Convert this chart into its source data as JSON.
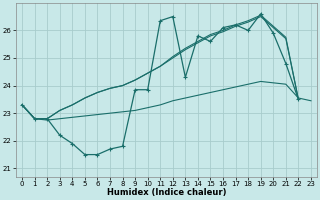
{
  "title": "",
  "xlabel": "Humidex (Indice chaleur)",
  "bg_color": "#c8e8e8",
  "grid_color": "#a8cccc",
  "line_color": "#1a6e6a",
  "xlim": [
    -0.5,
    23.5
  ],
  "ylim": [
    20.7,
    27.0
  ],
  "yticks": [
    21,
    22,
    23,
    24,
    25,
    26
  ],
  "xticks": [
    0,
    1,
    2,
    3,
    4,
    5,
    6,
    7,
    8,
    9,
    10,
    11,
    12,
    13,
    14,
    15,
    16,
    17,
    18,
    19,
    20,
    21,
    22,
    23
  ],
  "series": [
    {
      "x": [
        0,
        1,
        2,
        3,
        4,
        5,
        6,
        7,
        8,
        9,
        10,
        11,
        12,
        13,
        14,
        15,
        16,
        17,
        18,
        19,
        20,
        21,
        22
      ],
      "y": [
        23.3,
        22.8,
        22.8,
        22.2,
        21.9,
        21.5,
        21.5,
        21.7,
        21.8,
        23.85,
        23.85,
        26.35,
        26.5,
        24.3,
        25.8,
        25.6,
        26.1,
        26.2,
        26.0,
        26.6,
        25.9,
        24.8,
        23.5
      ],
      "marker": true,
      "lw": 0.9
    },
    {
      "x": [
        0,
        1,
        2,
        3,
        4,
        5,
        6,
        7,
        8,
        9,
        10,
        11,
        12,
        13,
        14,
        15,
        16,
        17,
        18,
        19,
        20,
        21,
        22
      ],
      "y": [
        23.3,
        22.8,
        22.8,
        23.1,
        23.3,
        23.55,
        23.75,
        23.9,
        24.0,
        24.2,
        24.45,
        24.7,
        25.0,
        25.3,
        25.55,
        25.8,
        25.95,
        26.15,
        26.3,
        26.5,
        26.1,
        25.7,
        23.5
      ],
      "marker": false,
      "lw": 0.8
    },
    {
      "x": [
        0,
        1,
        2,
        3,
        4,
        5,
        6,
        7,
        8,
        9,
        10,
        11,
        12,
        13,
        14,
        15,
        16,
        17,
        18,
        19,
        20,
        21,
        22
      ],
      "y": [
        23.3,
        22.8,
        22.8,
        23.1,
        23.3,
        23.55,
        23.75,
        23.9,
        24.0,
        24.2,
        24.45,
        24.7,
        25.05,
        25.35,
        25.6,
        25.85,
        26.0,
        26.2,
        26.35,
        26.55,
        26.15,
        25.75,
        23.5
      ],
      "marker": false,
      "lw": 0.8
    },
    {
      "x": [
        0,
        1,
        2,
        3,
        4,
        5,
        6,
        7,
        8,
        9,
        10,
        11,
        12,
        13,
        14,
        15,
        16,
        17,
        18,
        19,
        20,
        21,
        22,
        23
      ],
      "y": [
        23.3,
        22.8,
        22.75,
        22.8,
        22.85,
        22.9,
        22.95,
        23.0,
        23.05,
        23.1,
        23.2,
        23.3,
        23.45,
        23.55,
        23.65,
        23.75,
        23.85,
        23.95,
        24.05,
        24.15,
        24.1,
        24.05,
        23.55,
        23.45
      ],
      "marker": false,
      "lw": 0.8
    }
  ]
}
